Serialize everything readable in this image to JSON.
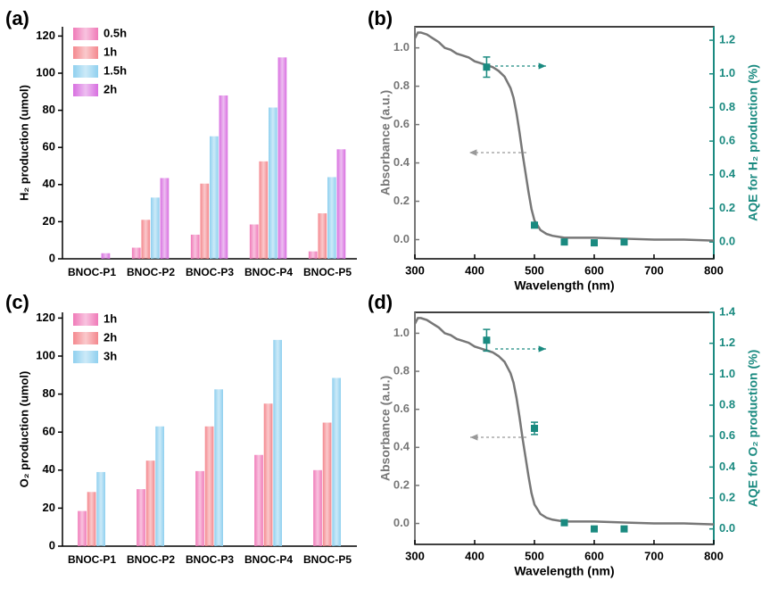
{
  "chart_data": [
    {
      "type": "bar",
      "panel_label": "(a)",
      "y_label": "H₂ production (umol)",
      "categories": [
        "BNOC-P1",
        "BNOC-P2",
        "BNOC-P3",
        "BNOC-P4",
        "BNOC-P5"
      ],
      "series": [
        {
          "name": "0.5h",
          "color": "#f07ab8",
          "values": [
            0,
            6,
            13,
            18.5,
            4
          ]
        },
        {
          "name": "1h",
          "color": "#f4888e",
          "values": [
            0,
            21,
            40.5,
            52.5,
            24.5
          ]
        },
        {
          "name": "1.5h",
          "color": "#8fd0ef",
          "values": [
            0,
            33,
            66,
            81.5,
            44
          ]
        },
        {
          "name": "2h",
          "color": "#d86fe0",
          "values": [
            3,
            43.5,
            88,
            108.5,
            59
          ]
        }
      ],
      "ylim": [
        0,
        125
      ],
      "yticks": [
        0,
        20,
        40,
        60,
        80,
        100,
        120
      ],
      "legend": "upper left"
    },
    {
      "type": "line",
      "panel_label": "(b)",
      "x_label": "Wavelength (nm)",
      "y_label": "Absorbance (a.u.)",
      "y2_label": "AQE for H₂ production (%)",
      "xlim": [
        300,
        800
      ],
      "xticks": [
        300,
        400,
        500,
        600,
        700,
        800
      ],
      "ylim": [
        -0.1,
        1.11
      ],
      "yticks": [
        {
          "value": 0,
          "label": "0.0"
        },
        0.2,
        0.4,
        0.6,
        0.8,
        {
          "value": 1,
          "label": "1.0"
        }
      ],
      "y2lim": [
        -0.1,
        1.28
      ],
      "y2ticks": [
        {
          "value": 0,
          "label": "0.0"
        },
        0.2,
        0.4,
        0.6,
        0.8,
        {
          "value": 1,
          "label": "1.0"
        },
        1.2
      ],
      "series": [
        {
          "style": "line",
          "color": "#777777",
          "x": [
            300,
            305,
            310,
            320,
            330,
            340,
            350,
            360,
            370,
            380,
            390,
            400,
            410,
            420,
            430,
            440,
            450,
            460,
            465,
            470,
            475,
            480,
            485,
            490,
            495,
            500,
            510,
            520,
            530,
            550,
            600,
            650,
            700,
            750,
            800
          ],
          "values": [
            1.05,
            1.08,
            1.08,
            1.07,
            1.05,
            1.03,
            1.0,
            0.99,
            0.97,
            0.96,
            0.95,
            0.93,
            0.92,
            0.91,
            0.9,
            0.88,
            0.85,
            0.79,
            0.74,
            0.66,
            0.56,
            0.45,
            0.35,
            0.25,
            0.16,
            0.1,
            0.05,
            0.03,
            0.02,
            0.01,
            0.01,
            0.005,
            0,
            0,
            -0.005
          ]
        },
        {
          "style": "square",
          "axis": "y2",
          "color": "#1a8a80",
          "x": [
            420,
            500,
            550,
            600,
            650
          ],
          "values": [
            1.04,
            0.1,
            0,
            -0.005,
            0
          ],
          "errors": [
            0.06,
            0,
            0,
            0,
            0
          ]
        }
      ]
    },
    {
      "type": "bar",
      "panel_label": "(c)",
      "y_label": "O₂ production (umol)",
      "categories": [
        "BNOC-P1",
        "BNOC-P2",
        "BNOC-P3",
        "BNOC-P4",
        "BNOC-P5"
      ],
      "series": [
        {
          "name": "1h",
          "color": "#f07ab8",
          "values": [
            18.5,
            30,
            39.5,
            48,
            40
          ]
        },
        {
          "name": "2h",
          "color": "#f4888e",
          "values": [
            28.5,
            45,
            63,
            75,
            65
          ]
        },
        {
          "name": "3h",
          "color": "#8fd0ef",
          "values": [
            39,
            63,
            82.5,
            108.5,
            88.5
          ]
        }
      ],
      "ylim": [
        0,
        123
      ],
      "yticks": [
        0,
        20,
        40,
        60,
        80,
        100,
        120
      ],
      "legend": "upper left"
    },
    {
      "type": "line",
      "panel_label": "(d)",
      "x_label": "Wavelength (nm)",
      "y_label": "Absorbance (a.u.)",
      "y2_label": "AQE for O₂ production (%)",
      "xlim": [
        300,
        800
      ],
      "xticks": [
        300,
        400,
        500,
        600,
        700,
        800
      ],
      "ylim": [
        -0.11,
        1.11
      ],
      "yticks": [
        {
          "value": 0,
          "label": "0.0"
        },
        0.2,
        0.4,
        0.6,
        0.8,
        {
          "value": 1,
          "label": "1.0"
        }
      ],
      "y2lim": [
        -0.1,
        1.4
      ],
      "y2ticks": [
        {
          "value": 0,
          "label": "0.0"
        },
        0.2,
        0.4,
        0.6,
        0.8,
        {
          "value": 1,
          "label": "1.0"
        },
        1.2,
        1.4
      ],
      "series": [
        {
          "style": "line",
          "color": "#777777",
          "x": [
            300,
            305,
            310,
            320,
            330,
            340,
            350,
            360,
            370,
            380,
            390,
            400,
            410,
            420,
            430,
            440,
            450,
            460,
            465,
            470,
            475,
            480,
            485,
            490,
            495,
            500,
            510,
            520,
            530,
            550,
            600,
            650,
            700,
            750,
            800
          ],
          "values": [
            1.05,
            1.08,
            1.08,
            1.07,
            1.05,
            1.03,
            1.0,
            0.99,
            0.97,
            0.96,
            0.95,
            0.93,
            0.92,
            0.91,
            0.9,
            0.88,
            0.85,
            0.79,
            0.74,
            0.66,
            0.56,
            0.45,
            0.35,
            0.25,
            0.16,
            0.1,
            0.05,
            0.03,
            0.02,
            0.01,
            0.01,
            0.005,
            0,
            0,
            -0.005
          ]
        },
        {
          "style": "square",
          "axis": "y2",
          "color": "#1a8a80",
          "x": [
            420,
            500,
            550,
            600,
            650
          ],
          "values": [
            1.22,
            0.65,
            0.04,
            0,
            0
          ],
          "errors": [
            0.07,
            0.04,
            0,
            0,
            0
          ]
        }
      ]
    }
  ]
}
